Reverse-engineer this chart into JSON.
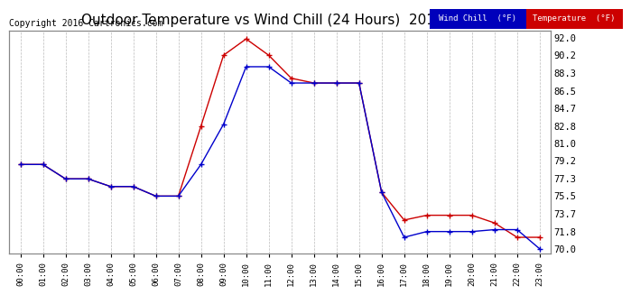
{
  "title": "Outdoor Temperature vs Wind Chill (24 Hours)  20160723",
  "copyright": "Copyright 2016 Cartronics.com",
  "legend_wind_chill": "Wind Chill  (°F)",
  "legend_temperature": "Temperature  (°F)",
  "hours": [
    "00:00",
    "01:00",
    "02:00",
    "03:00",
    "04:00",
    "05:00",
    "06:00",
    "07:00",
    "08:00",
    "09:00",
    "10:00",
    "11:00",
    "12:00",
    "13:00",
    "14:00",
    "15:00",
    "16:00",
    "17:00",
    "18:00",
    "19:00",
    "20:00",
    "21:00",
    "22:00",
    "23:00"
  ],
  "temperature": [
    78.8,
    78.8,
    77.3,
    77.3,
    76.5,
    76.5,
    75.5,
    75.5,
    82.8,
    90.2,
    91.9,
    90.2,
    87.8,
    87.3,
    87.3,
    87.3,
    75.9,
    73.0,
    73.5,
    73.5,
    73.5,
    72.7,
    71.2,
    71.2
  ],
  "wind_chill": [
    78.8,
    78.8,
    77.3,
    77.3,
    76.5,
    76.5,
    75.5,
    75.5,
    78.8,
    83.0,
    89.0,
    89.0,
    87.3,
    87.3,
    87.3,
    87.3,
    75.9,
    71.2,
    71.8,
    71.8,
    71.8,
    72.0,
    72.0,
    70.0
  ],
  "temp_color": "#cc0000",
  "wind_chill_color": "#0000cc",
  "ylim_min": 69.5,
  "ylim_max": 92.8,
  "yticks": [
    70.0,
    71.8,
    73.7,
    75.5,
    77.3,
    79.2,
    81.0,
    82.8,
    84.7,
    86.5,
    88.3,
    90.2,
    92.0
  ],
  "background_color": "#ffffff",
  "grid_color": "#bbbbbb",
  "title_fontsize": 11,
  "copyright_fontsize": 7,
  "legend_bg_wind": "#0000bb",
  "legend_bg_temp": "#cc0000",
  "legend_text_color": "#ffffff"
}
